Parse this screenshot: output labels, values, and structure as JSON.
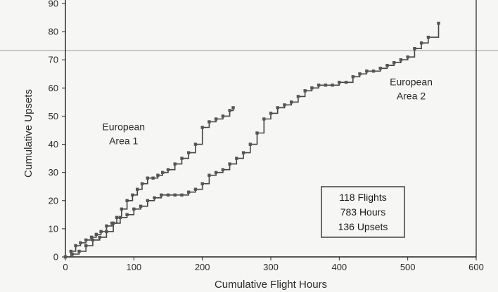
{
  "chart_data": {
    "type": "line",
    "title": "",
    "xlabel": "Cumulative Flight Hours",
    "ylabel": "Cumulative Upsets",
    "xlim": [
      0,
      600
    ],
    "ylim": [
      0,
      90
    ],
    "x_ticks": [
      "0",
      "100",
      "200",
      "300",
      "400",
      "500",
      "600"
    ],
    "y_ticks": [
      "0",
      "10",
      "20",
      "30",
      "40",
      "50",
      "60",
      "70",
      "80",
      "90"
    ],
    "grid": false,
    "series": [
      {
        "name": "European Area 1",
        "x": [
          0,
          8,
          15,
          22,
          30,
          38,
          45,
          52,
          60,
          68,
          75,
          82,
          90,
          98,
          105,
          112,
          120,
          128,
          135,
          142,
          150,
          160,
          170,
          180,
          190,
          200,
          210,
          220,
          230,
          240,
          245
        ],
        "y": [
          0,
          2,
          4,
          5,
          6,
          7,
          8,
          9,
          11,
          12,
          14,
          17,
          20,
          22,
          24,
          26,
          28,
          28,
          29,
          30,
          31,
          33,
          35,
          37,
          40,
          46,
          48,
          49,
          50,
          52,
          53
        ]
      },
      {
        "name": "European Area 2",
        "x": [
          0,
          10,
          20,
          30,
          40,
          50,
          60,
          70,
          80,
          90,
          100,
          110,
          120,
          130,
          140,
          150,
          160,
          170,
          180,
          190,
          200,
          210,
          220,
          230,
          240,
          250,
          260,
          270,
          280,
          290,
          300,
          310,
          320,
          330,
          340,
          350,
          360,
          370,
          380,
          390,
          400,
          410,
          420,
          430,
          440,
          450,
          460,
          470,
          480,
          490,
          500,
          510,
          520,
          530,
          545
        ],
        "y": [
          0,
          1,
          2,
          4,
          6,
          7,
          9,
          12,
          14,
          15,
          17,
          18,
          20,
          21,
          22,
          22,
          22,
          22,
          23,
          24,
          26,
          29,
          30,
          31,
          33,
          35,
          37,
          40,
          44,
          49,
          51,
          53,
          54,
          55,
          57,
          59,
          60,
          61,
          61,
          61,
          62,
          62,
          64,
          65,
          66,
          66,
          67,
          68,
          69,
          70,
          71,
          74,
          76,
          78,
          83
        ]
      }
    ],
    "annotations": [
      {
        "lines": [
          "European",
          "Area 1"
        ],
        "x": 85,
        "y": 45
      },
      {
        "lines": [
          "European",
          "Area 2"
        ],
        "x": 505,
        "y": 61
      }
    ],
    "info_box": {
      "lines": [
        "118 Flights",
        "783 Hours",
        "136 Upsets"
      ]
    }
  }
}
